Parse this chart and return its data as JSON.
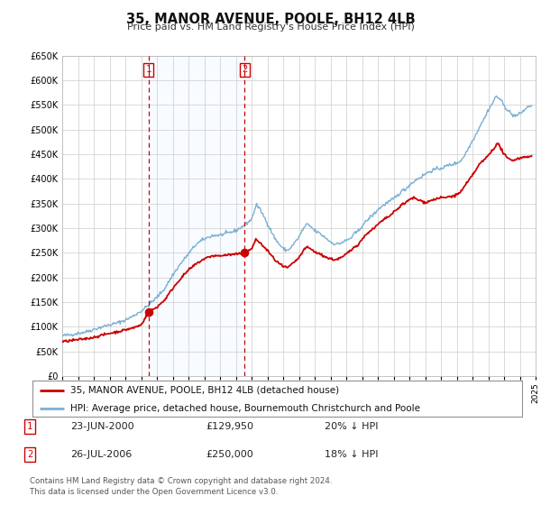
{
  "title": "35, MANOR AVENUE, POOLE, BH12 4LB",
  "subtitle": "Price paid vs. HM Land Registry's House Price Index (HPI)",
  "legend_line1": "35, MANOR AVENUE, POOLE, BH12 4LB (detached house)",
  "legend_line2": "HPI: Average price, detached house, Bournemouth Christchurch and Poole",
  "table_rows": [
    [
      "1",
      "23-JUN-2000",
      "£129,950",
      "20% ↓ HPI"
    ],
    [
      "2",
      "26-JUL-2006",
      "£250,000",
      "18% ↓ HPI"
    ]
  ],
  "footnote1": "Contains HM Land Registry data © Crown copyright and database right 2024.",
  "footnote2": "This data is licensed under the Open Government Licence v3.0.",
  "sale_color": "#cc0000",
  "hpi_color": "#7aafd4",
  "background_color": "#ffffff",
  "plot_bg_color": "#ffffff",
  "grid_color": "#cccccc",
  "shade_color": "#ddeeff",
  "sale1_date_num": 2000.47,
  "sale1_price": 129950,
  "sale2_date_num": 2006.56,
  "sale2_price": 250000,
  "vline1": 2000.47,
  "vline2": 2006.56,
  "xmin": 1995.0,
  "xmax": 2025.0,
  "ymin": 0,
  "ymax": 650000
}
